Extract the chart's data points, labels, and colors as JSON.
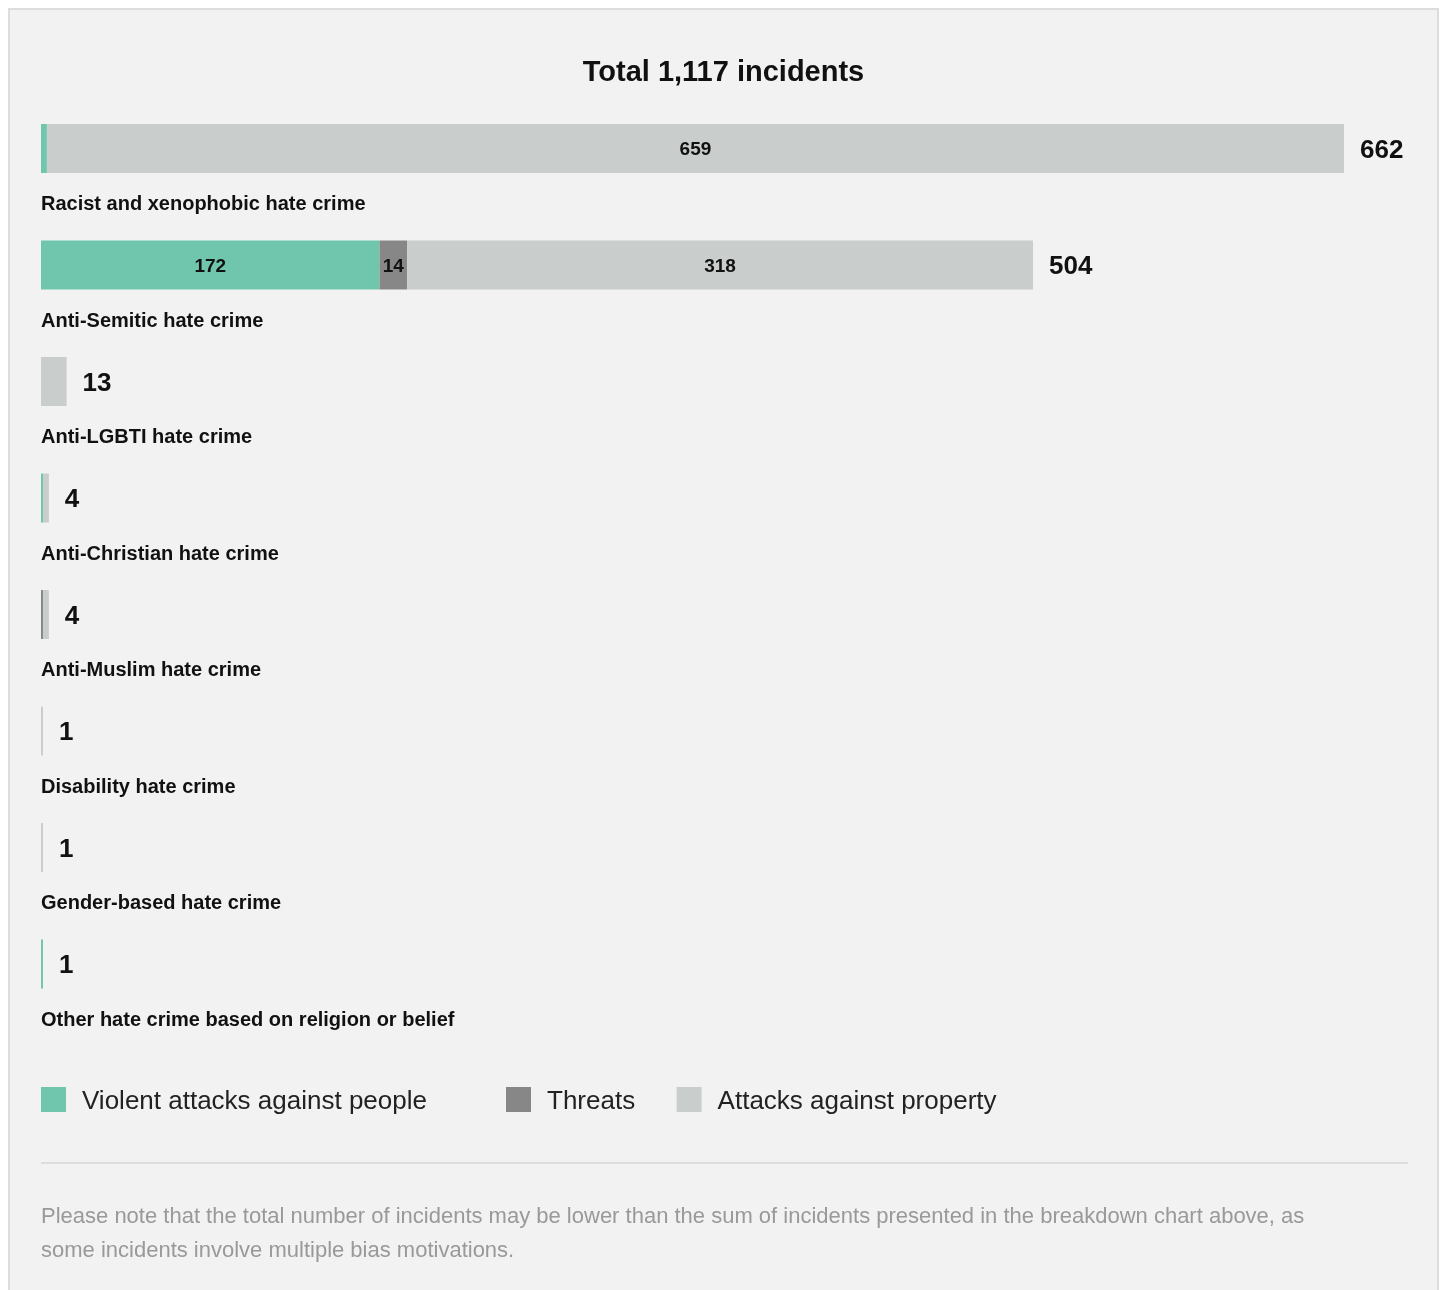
{
  "chart_data": {
    "type": "bar",
    "orientation": "horizontal",
    "stacked": true,
    "title": "Total 1,117 incidents",
    "categories": [
      "Racist and xenophobic hate crime",
      "Anti-Semitic hate crime",
      "Anti-LGBTI hate crime",
      "Anti-Christian hate crime",
      "Anti-Muslim hate crime",
      "Disability hate crime",
      "Gender-based hate crime",
      "Other hate crime based on religion or belief"
    ],
    "series": [
      {
        "name": "Violent attacks against people",
        "color": "#6fc6ad",
        "values": [
          3,
          172,
          0,
          1,
          0,
          0,
          0,
          1
        ],
        "value_labels": [
          null,
          "172",
          null,
          null,
          null,
          null,
          null,
          null
        ]
      },
      {
        "name": "Threats",
        "color": "#878787",
        "values": [
          0,
          14,
          0,
          0,
          1,
          0,
          0,
          0
        ],
        "value_labels": [
          null,
          "14",
          null,
          null,
          null,
          null,
          null,
          null
        ]
      },
      {
        "name": "Attacks against property",
        "color": "#c9cdcc",
        "values": [
          659,
          318,
          13,
          3,
          3,
          1,
          1,
          0
        ],
        "value_labels": [
          "659",
          "318",
          null,
          null,
          null,
          null,
          null,
          null
        ]
      }
    ],
    "totals": [
      "662",
      "504",
      "13",
      "4",
      "4",
      "1",
      "1",
      "1"
    ],
    "legend": "bottom",
    "annotations": [
      "Please note that the total number of incidents may be lower than the sum of incidents presented in the breakdown chart above, as some incidents involve multiple bias motivations."
    ]
  }
}
